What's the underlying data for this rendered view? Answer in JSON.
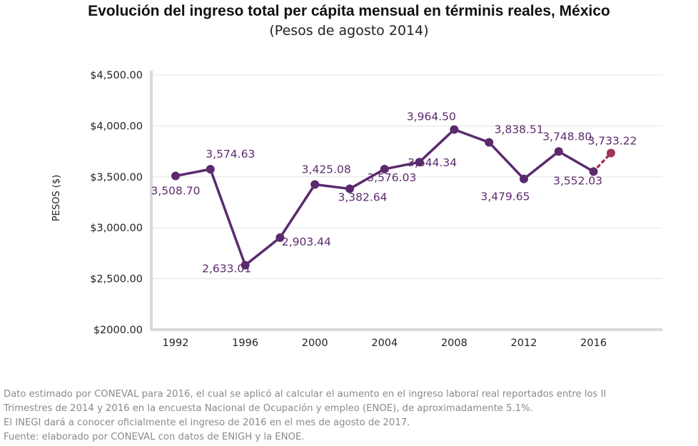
{
  "title": "Evolución del ingreso total per cápita mensual en términis reales, México",
  "subtitle": "(Pesos de agosto 2014)",
  "chart_data": {
    "type": "line",
    "ylabel": "PESOS ($)",
    "ylim": [
      2000,
      4500
    ],
    "yticks": [
      {
        "value": 4500,
        "label": "$4,500.00"
      },
      {
        "value": 4000,
        "label": "$4,000.00"
      },
      {
        "value": 3500,
        "label": "$3,500.00"
      },
      {
        "value": 3000,
        "label": "$3,000.00"
      },
      {
        "value": 2500,
        "label": "$2,500.00"
      },
      {
        "value": 2000,
        "label": "$2000.00"
      }
    ],
    "xlim": [
      1991,
      2017
    ],
    "xticks": [
      1992,
      1996,
      2000,
      2004,
      2008,
      2012,
      2016
    ],
    "grid": "horizontal",
    "series": [
      {
        "color": "#5b2a6e",
        "style": "solid",
        "points": [
          {
            "x": 1992,
            "y": 3508.7,
            "label": "3,508.70"
          },
          {
            "x": 1994,
            "y": 3574.63,
            "label": "3,574.63"
          },
          {
            "x": 1996,
            "y": 2633.01,
            "label": "2,633.01"
          },
          {
            "x": 1998,
            "y": 2903.44,
            "label": "2,903.44"
          },
          {
            "x": 2000,
            "y": 3425.08,
            "label": "3,425.08"
          },
          {
            "x": 2002,
            "y": 3382.64,
            "label": "3,382.64"
          },
          {
            "x": 2004,
            "y": 3576.03,
            "label": "3,576.03"
          },
          {
            "x": 2006,
            "y": 3644.34,
            "label": "3,644.34"
          },
          {
            "x": 2008,
            "y": 3964.5,
            "label": "3,964.50"
          },
          {
            "x": 2010,
            "y": 3838.51,
            "label": "3,838.51"
          },
          {
            "x": 2012,
            "y": 3479.65,
            "label": "3,479.65"
          },
          {
            "x": 2014,
            "y": 3748.8,
            "label": "3,748.80"
          },
          {
            "x": 2016,
            "y": 3552.03,
            "label": "3,552.03"
          }
        ]
      },
      {
        "color": "#a0355e",
        "style": "dotted",
        "points": [
          {
            "x": 2016,
            "y": 3552.03,
            "label": ""
          },
          {
            "x": 2017,
            "y": 3733.22,
            "label": "3,733.22"
          }
        ]
      }
    ]
  },
  "notes": [
    "Dato estimado por CONEVAL para 2016, el cual se aplicó al calcular el aumento en el ingreso laboral real reportados entre los II",
    "Trimestres de 2014 y 2016 en la encuesta Nacional de Ocupación y empleo (ENOE), de aproximadamente 5.1%.",
    "El INEGI dará a conocer oficialmente el ingreso de 2016 en el mes de agosto de 2017.",
    "Fuente: elaborado por CONEVAL con datos de ENIGH y la ENOE."
  ]
}
